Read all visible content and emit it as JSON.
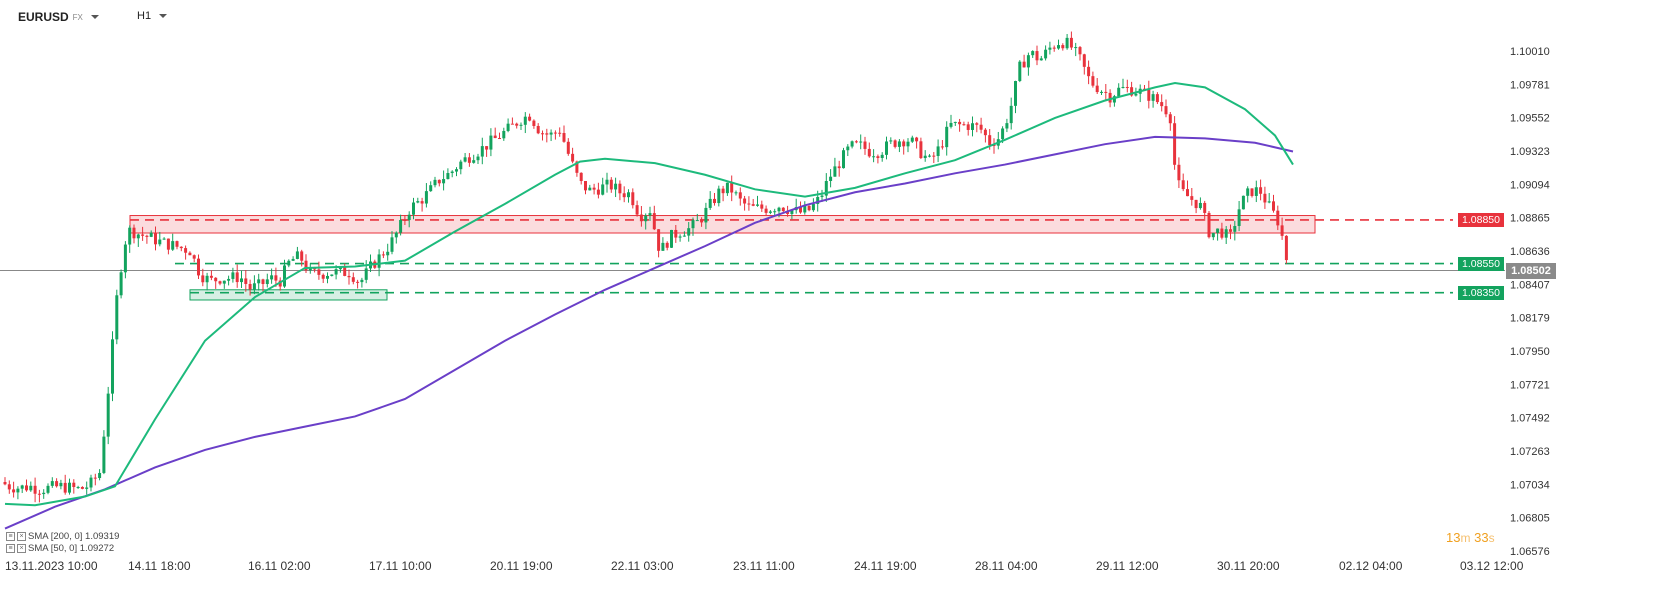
{
  "toolbar": {
    "symbol": "EURUSD",
    "symbol_sub": "FX",
    "timeframe": "H1"
  },
  "y_axis_labels": [
    "1.10010",
    "1.09781",
    "1.09552",
    "1.09323",
    "1.09094",
    "1.08865",
    "1.08636",
    "1.08407",
    "1.08179",
    "1.07950",
    "1.07721",
    "1.07492",
    "1.07263",
    "1.07034",
    "1.06805",
    "1.06576"
  ],
  "x_axis_labels": [
    "13.11.2023 10:00",
    "14.11 18:00",
    "16.11 02:00",
    "17.11 10:00",
    "20.11 19:00",
    "22.11 03:00",
    "23.11 11:00",
    "24.11 19:00",
    "28.11 04:00",
    "29.11 12:00",
    "30.11 20:00",
    "02.12 04:00",
    "03.12 12:00"
  ],
  "levels": [
    {
      "name": "resistance",
      "label": "1.08850",
      "color": "#e8323c"
    },
    {
      "name": "support-1",
      "label": "1.08550",
      "color": "#13a35e"
    },
    {
      "name": "support-2",
      "label": "1.08350",
      "color": "#13a35e"
    }
  ],
  "current_price": "1.08502",
  "indicators": [
    {
      "label": "SMA [200, 0]",
      "value": "1.09319",
      "color": "#6a3fc8"
    },
    {
      "label": "SMA [50, 0]",
      "value": "1.09272",
      "color": "#1dba7c"
    }
  ],
  "timer": {
    "minutes": "13",
    "m": "m",
    "seconds": "33",
    "s": "s"
  },
  "colors": {
    "bull": "#13a35e",
    "bear": "#e8323c",
    "sma50": "#1dba7c",
    "sma200": "#6a3fc8"
  },
  "chart_data": {
    "type": "candlestick",
    "symbol": "EURUSD",
    "timeframe": "H1",
    "ylim": [
      1.06576,
      1.10124
    ],
    "x_ticks": [
      "13.11.2023 10:00",
      "14.11 18:00",
      "16.11 02:00",
      "17.11 10:00",
      "20.11 19:00",
      "22.11 03:00",
      "23.11 11:00",
      "24.11 19:00",
      "28.11 04:00",
      "29.11 12:00",
      "30.11 20:00",
      "02.12 04:00",
      "03.12 12:00"
    ],
    "close_path": [
      [
        0,
        1.0705
      ],
      [
        10,
        1.0702
      ],
      [
        20,
        1.0701
      ],
      [
        30,
        1.0702
      ],
      [
        40,
        1.07
      ],
      [
        50,
        1.0701
      ],
      [
        60,
        1.0702
      ],
      [
        70,
        1.0701
      ],
      [
        80,
        1.07
      ],
      [
        90,
        1.0703
      ],
      [
        100,
        1.0712
      ],
      [
        110,
        1.078
      ],
      [
        118,
        1.084
      ],
      [
        125,
        1.087
      ],
      [
        130,
        1.0878
      ],
      [
        140,
        1.0875
      ],
      [
        150,
        1.0873
      ],
      [
        160,
        1.087
      ],
      [
        170,
        1.0868
      ],
      [
        180,
        1.0866
      ],
      [
        190,
        1.0864
      ],
      [
        200,
        1.0848
      ],
      [
        210,
        1.0843
      ],
      [
        220,
        1.0845
      ],
      [
        230,
        1.0845
      ],
      [
        240,
        1.0846
      ],
      [
        250,
        1.0838
      ],
      [
        260,
        1.084
      ],
      [
        270,
        1.0845
      ],
      [
        280,
        1.0843
      ],
      [
        290,
        1.0857
      ],
      [
        300,
        1.086
      ],
      [
        310,
        1.0848
      ],
      [
        320,
        1.0848
      ],
      [
        330,
        1.0849
      ],
      [
        340,
        1.0849
      ],
      [
        350,
        1.0849
      ],
      [
        360,
        1.0842
      ],
      [
        370,
        1.0852
      ],
      [
        380,
        1.086
      ],
      [
        390,
        1.0868
      ],
      [
        400,
        1.088
      ],
      [
        410,
        1.0893
      ],
      [
        420,
        1.0898
      ],
      [
        430,
        1.0905
      ],
      [
        440,
        1.0913
      ],
      [
        450,
        1.0917
      ],
      [
        460,
        1.0924
      ],
      [
        470,
        1.0929
      ],
      [
        480,
        1.0933
      ],
      [
        490,
        1.0938
      ],
      [
        500,
        1.0943
      ],
      [
        510,
        1.0948
      ],
      [
        520,
        1.0954
      ],
      [
        530,
        1.0957
      ],
      [
        540,
        1.0946
      ],
      [
        550,
        1.0943
      ],
      [
        560,
        1.0947
      ],
      [
        570,
        1.0927
      ],
      [
        580,
        1.091
      ],
      [
        590,
        1.0905
      ],
      [
        600,
        1.0907
      ],
      [
        610,
        1.0909
      ],
      [
        620,
        1.0904
      ],
      [
        630,
        1.0903
      ],
      [
        640,
        1.0888
      ],
      [
        650,
        1.0892
      ],
      [
        660,
        1.0863
      ],
      [
        670,
        1.0873
      ],
      [
        680,
        1.0877
      ],
      [
        690,
        1.0879
      ],
      [
        700,
        1.0885
      ],
      [
        710,
        1.0895
      ],
      [
        720,
        1.0905
      ],
      [
        730,
        1.0907
      ],
      [
        740,
        1.0898
      ],
      [
        750,
        1.0893
      ],
      [
        760,
        1.0893
      ],
      [
        770,
        1.0893
      ],
      [
        780,
        1.0895
      ],
      [
        790,
        1.0892
      ],
      [
        800,
        1.089
      ],
      [
        810,
        1.0892
      ],
      [
        820,
        1.09
      ],
      [
        830,
        1.0915
      ],
      [
        840,
        1.0925
      ],
      [
        850,
        1.0935
      ],
      [
        860,
        1.0936
      ],
      [
        870,
        1.0932
      ],
      [
        880,
        1.0932
      ],
      [
        890,
        1.0937
      ],
      [
        900,
        1.094
      ],
      [
        910,
        1.094
      ],
      [
        920,
        1.0932
      ],
      [
        930,
        1.0925
      ],
      [
        940,
        1.0935
      ],
      [
        950,
        1.095
      ],
      [
        960,
        1.095
      ],
      [
        970,
        1.095
      ],
      [
        980,
        1.0948
      ],
      [
        990,
        1.0938
      ],
      [
        1000,
        1.0942
      ],
      [
        1010,
        1.096
      ],
      [
        1020,
        1.099
      ],
      [
        1030,
        1.1
      ],
      [
        1040,
        1.0995
      ],
      [
        1050,
        1.1003
      ],
      [
        1060,
        1.1008
      ],
      [
        1070,
        1.1005
      ],
      [
        1080,
        1.0995
      ],
      [
        1090,
        1.098
      ],
      [
        1100,
        1.0975
      ],
      [
        1110,
        1.097
      ],
      [
        1120,
        1.0975
      ],
      [
        1130,
        1.0975
      ],
      [
        1140,
        1.0973
      ],
      [
        1150,
        1.097
      ],
      [
        1160,
        1.0965
      ],
      [
        1170,
        1.0958
      ],
      [
        1175,
        1.092
      ],
      [
        1180,
        1.0905
      ],
      [
        1190,
        1.09
      ],
      [
        1200,
        1.0895
      ],
      [
        1210,
        1.0875
      ],
      [
        1220,
        1.0878
      ],
      [
        1230,
        1.0872
      ],
      [
        1240,
        1.0895
      ],
      [
        1250,
        1.0905
      ],
      [
        1260,
        1.0905
      ],
      [
        1270,
        1.0893
      ],
      [
        1280,
        1.0882
      ],
      [
        1285,
        1.0862
      ],
      [
        1290,
        1.085
      ]
    ],
    "series": [
      {
        "name": "SMA [200, 0]",
        "last": 1.09319,
        "points": [
          [
            0,
            1.0673
          ],
          [
            50,
            1.0688
          ],
          [
            100,
            1.07
          ],
          [
            150,
            1.0715
          ],
          [
            200,
            1.0727
          ],
          [
            250,
            1.0736
          ],
          [
            300,
            1.0743
          ],
          [
            350,
            1.075
          ],
          [
            400,
            1.0762
          ],
          [
            450,
            1.0782
          ],
          [
            500,
            1.0802
          ],
          [
            550,
            1.082
          ],
          [
            600,
            1.0837
          ],
          [
            650,
            1.0852
          ],
          [
            700,
            1.0867
          ],
          [
            750,
            1.0883
          ],
          [
            800,
            1.0895
          ],
          [
            850,
            1.0904
          ],
          [
            900,
            1.091
          ],
          [
            950,
            1.0917
          ],
          [
            1000,
            1.0923
          ],
          [
            1050,
            1.093
          ],
          [
            1100,
            1.0937
          ],
          [
            1150,
            1.0942
          ],
          [
            1200,
            1.0941
          ],
          [
            1250,
            1.0938
          ],
          [
            1288,
            1.0932
          ]
        ]
      },
      {
        "name": "SMA [50, 0]",
        "last": 1.09272,
        "points": [
          [
            0,
            1.069
          ],
          [
            30,
            1.0689
          ],
          [
            80,
            1.0695
          ],
          [
            110,
            1.0702
          ],
          [
            150,
            1.0748
          ],
          [
            200,
            1.0802
          ],
          [
            250,
            1.0832
          ],
          [
            300,
            1.0852
          ],
          [
            350,
            1.0853
          ],
          [
            400,
            1.0857
          ],
          [
            450,
            1.0877
          ],
          [
            500,
            1.0896
          ],
          [
            550,
            1.0916
          ],
          [
            575,
            1.0925
          ],
          [
            600,
            1.0927
          ],
          [
            650,
            1.0924
          ],
          [
            700,
            1.0916
          ],
          [
            750,
            1.0906
          ],
          [
            800,
            1.0901
          ],
          [
            850,
            1.0907
          ],
          [
            900,
            1.0917
          ],
          [
            950,
            1.0926
          ],
          [
            1000,
            1.094
          ],
          [
            1050,
            1.0955
          ],
          [
            1100,
            1.0967
          ],
          [
            1150,
            1.0976
          ],
          [
            1170,
            1.0979
          ],
          [
            1200,
            1.0976
          ],
          [
            1240,
            1.0961
          ],
          [
            1270,
            1.0943
          ],
          [
            1288,
            1.0923
          ]
        ]
      }
    ],
    "levels": [
      1.0885,
      1.0855,
      1.0835
    ],
    "last_price": 1.08502,
    "grid": false
  }
}
